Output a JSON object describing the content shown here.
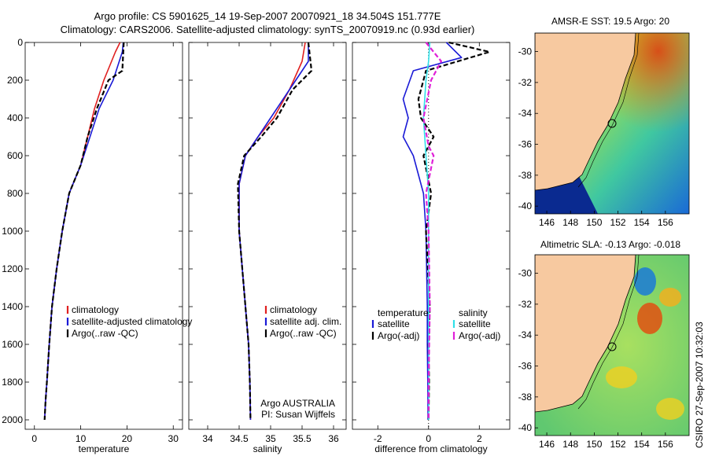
{
  "header": {
    "line1": "Argo profile: CS 5901625_14 19-Sep-2007 20070921_18 34.504S 151.777E",
    "line2": "Climatology: CARS2006. Satellite-adjusted climatology: synTS_20070919.nc (0.93d earlier)"
  },
  "side_stamp": "CSIRO 27-Sep-2007 10:32:03",
  "colors": {
    "red": "#e02020",
    "blue": "#1a1ad6",
    "black": "#000000",
    "cyan": "#30e0e8",
    "magenta": "#e020d8",
    "land": "#f7c9a0"
  },
  "chart_data": [
    {
      "id": "temperature",
      "type": "line",
      "xlabel": "temperature",
      "ylabel": "",
      "xlim": [
        -2,
        32
      ],
      "ylim": [
        2050,
        0
      ],
      "xticks": [
        0,
        10,
        20,
        30
      ],
      "yticks": [
        0,
        200,
        400,
        600,
        800,
        1000,
        1200,
        1400,
        1600,
        1800,
        2000
      ],
      "legend": [
        "climatology",
        "satellite-adjusted climatology",
        "Argo(..raw -QC)"
      ],
      "series": [
        {
          "name": "climatology",
          "color": "red",
          "dash": "",
          "x": [
            18.5,
            17.5,
            15,
            13,
            11.5,
            10,
            7.5,
            6,
            4.8,
            3.8,
            3.2,
            2.7,
            2.4,
            2.2
          ],
          "y": [
            0,
            50,
            200,
            350,
            500,
            650,
            800,
            1000,
            1200,
            1400,
            1600,
            1800,
            1900,
            2000
          ]
        },
        {
          "name": "satellite-adjusted climatology",
          "color": "blue",
          "dash": "",
          "x": [
            19.2,
            19,
            17,
            14,
            12,
            10,
            7.5,
            6,
            4.8,
            3.8,
            3.2,
            2.7,
            2.4,
            2.2
          ],
          "y": [
            0,
            50,
            200,
            350,
            500,
            650,
            800,
            1000,
            1200,
            1400,
            1600,
            1800,
            1900,
            2000
          ]
        },
        {
          "name": "Argo(..raw -QC)",
          "color": "black",
          "dash": "6,3",
          "x": [
            19.3,
            19,
            16,
            13.5,
            11.5,
            10,
            7.5,
            6,
            4.8,
            3.8,
            3.2,
            2.7,
            2.4,
            2.2
          ],
          "y": [
            0,
            150,
            200,
            350,
            500,
            650,
            800,
            1000,
            1200,
            1400,
            1600,
            1800,
            1900,
            2000
          ]
        }
      ]
    },
    {
      "id": "salinity",
      "type": "line",
      "xlabel": "salinity",
      "xlim": [
        33.7,
        36.2
      ],
      "ylim": [
        2050,
        0
      ],
      "xticks": [
        34,
        34.5,
        35,
        35.5,
        36
      ],
      "legend": [
        "climatology",
        "satellite adj. clim.",
        "Argo(..raw -QC)"
      ],
      "annotation": [
        "Argo AUSTRALIA",
        "PI: Susan Wijffels"
      ],
      "series": [
        {
          "name": "climatology",
          "color": "red",
          "dash": "",
          "x": [
            35.55,
            35.5,
            35.3,
            35.05,
            34.8,
            34.6,
            34.5,
            34.5,
            34.55,
            34.6,
            34.65,
            34.67,
            34.68
          ],
          "y": [
            0,
            100,
            250,
            400,
            500,
            600,
            750,
            1000,
            1200,
            1400,
            1600,
            1800,
            2000
          ]
        },
        {
          "name": "satellite adj. clim.",
          "color": "blue",
          "dash": "",
          "x": [
            35.6,
            35.6,
            35.3,
            35.0,
            34.8,
            34.6,
            34.5,
            34.5,
            34.55,
            34.6,
            34.65,
            34.67,
            34.68
          ],
          "y": [
            0,
            100,
            250,
            400,
            500,
            600,
            750,
            1000,
            1200,
            1400,
            1600,
            1800,
            2000
          ]
        },
        {
          "name": "Argo(..raw -QC)",
          "color": "black",
          "dash": "6,3",
          "x": [
            35.6,
            35.65,
            35.35,
            35.1,
            34.85,
            34.58,
            34.48,
            34.5,
            34.55,
            34.6,
            34.65,
            34.67,
            34.68
          ],
          "y": [
            0,
            150,
            250,
            400,
            500,
            600,
            750,
            1000,
            1200,
            1400,
            1600,
            1800,
            2000
          ]
        }
      ]
    },
    {
      "id": "difference",
      "type": "line",
      "xlabel": "difference from climatology",
      "xlim": [
        -3,
        3.2
      ],
      "ylim": [
        2050,
        0
      ],
      "xticks": [
        -2,
        0,
        2
      ],
      "legend_left_title": "temperature",
      "legend_right_title": "salinity",
      "legend": [
        "satellite",
        "Argo(-adj)",
        "satellite",
        "Argo(-adj)"
      ],
      "series": [
        {
          "name": "temperature satellite",
          "color": "blue",
          "dash": "",
          "x": [
            0.7,
            1.3,
            -0.6,
            -1.0,
            -0.8,
            -1.0,
            -0.6,
            -0.2,
            -0.1,
            -0.05,
            -0.05,
            -0.03,
            -0.02
          ],
          "y": [
            0,
            80,
            150,
            300,
            400,
            500,
            600,
            800,
            1000,
            1400,
            1600,
            1800,
            2000
          ]
        },
        {
          "name": "temperature Argo(-adj)",
          "color": "black",
          "dash": "6,3",
          "x": [
            0.8,
            2.4,
            -0.1,
            -0.4,
            -0.3,
            0.2,
            -0.2,
            0.1,
            -0.1,
            0.05,
            0.0,
            0.02,
            0.0
          ],
          "y": [
            0,
            50,
            150,
            300,
            400,
            500,
            600,
            800,
            1000,
            1400,
            1600,
            1800,
            2000
          ]
        },
        {
          "name": "salinity satellite",
          "color": "cyan",
          "dash": "",
          "x": [
            0.05,
            0.0,
            -0.1,
            -0.2,
            -0.15,
            -0.1,
            0.0,
            0.0,
            0.0,
            0.0,
            0.0
          ],
          "y": [
            0,
            100,
            200,
            400,
            500,
            600,
            800,
            1000,
            1400,
            1800,
            2000
          ]
        },
        {
          "name": "salinity Argo(-adj)",
          "color": "magenta",
          "dash": "6,3",
          "x": [
            -0.1,
            0.5,
            0.1,
            -0.2,
            0.0,
            0.2,
            -0.1,
            0.0,
            0.05,
            0.0,
            0.0
          ],
          "y": [
            0,
            100,
            200,
            400,
            550,
            600,
            800,
            1000,
            1400,
            1800,
            2000
          ]
        }
      ]
    },
    {
      "id": "sst_map",
      "type": "heatmap",
      "title": "AMSR-E SST: 19.5 Argo: 20",
      "xlim": [
        145,
        158
      ],
      "ylim": [
        -40.5,
        -28.8
      ],
      "xticks": [
        146,
        148,
        150,
        152,
        154,
        156
      ],
      "yticks": [
        -30,
        -32,
        -34,
        -36,
        -38,
        -40
      ],
      "marker": {
        "lon": 151.8,
        "lat": -34.5
      }
    },
    {
      "id": "sla_map",
      "type": "heatmap",
      "title": "Altimetric SLA: -0.13 Argo: -0.018",
      "xlim": [
        145,
        158
      ],
      "ylim": [
        -40.5,
        -28.8
      ],
      "xticks": [
        146,
        148,
        150,
        152,
        154,
        156
      ],
      "yticks": [
        -30,
        -32,
        -34,
        -36,
        -38,
        -40
      ],
      "marker": {
        "lon": 151.8,
        "lat": -34.5
      }
    }
  ]
}
